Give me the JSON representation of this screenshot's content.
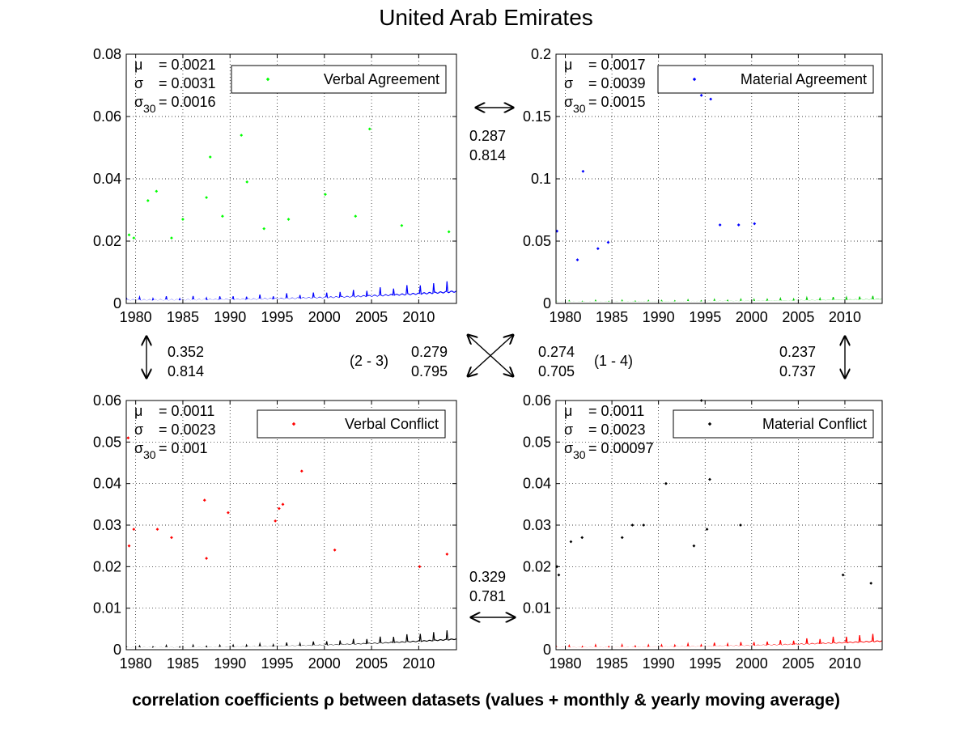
{
  "figure": {
    "title": "United Arab Emirates",
    "caption": "correlation coefficients ρ between datasets (values + monthly & yearly moving average)"
  },
  "stat_labels": {
    "mu": "μ",
    "sigma": "σ",
    "sigma30_main": "σ",
    "sigma30_sub": "30"
  },
  "chart_data": [
    {
      "type": "scatter",
      "legend": "Verbal Agreement",
      "color": "#00ff00",
      "avg_color": "#0000ff",
      "xlim": [
        1979,
        2014
      ],
      "ylim": [
        0,
        0.08
      ],
      "xticks": [
        1980,
        1985,
        1990,
        1995,
        2000,
        2005,
        2010
      ],
      "xtick_labels": [
        "1980",
        "1985",
        "1990",
        "1995",
        "2000",
        "2005",
        "2010"
      ],
      "yticks": [
        0,
        0.02,
        0.04,
        0.06,
        0.08
      ],
      "ytick_labels": [
        "0",
        "0.02",
        "0.04",
        "0.06",
        "0.08"
      ],
      "stats": {
        "mu": "= 0.0021",
        "sigma": "= 0.0031",
        "sigma30": "= 0.0016"
      },
      "base": 0.0018,
      "spread": 0.0025,
      "ramp_end": 0.0048,
      "density": 12,
      "outliers": [
        [
          1979.3,
          0.022
        ],
        [
          1979.8,
          0.021
        ],
        [
          1981.3,
          0.033
        ],
        [
          1982.2,
          0.036
        ],
        [
          1983.8,
          0.021
        ],
        [
          1985.0,
          0.027
        ],
        [
          1987.5,
          0.034
        ],
        [
          1987.9,
          0.047
        ],
        [
          1989.2,
          0.028
        ],
        [
          1991.2,
          0.054
        ],
        [
          1991.8,
          0.039
        ],
        [
          1993.6,
          0.024
        ],
        [
          1996.2,
          0.027
        ],
        [
          2000.1,
          0.035
        ],
        [
          2003.3,
          0.028
        ],
        [
          2004.8,
          0.056
        ],
        [
          2008.2,
          0.025
        ],
        [
          2013.2,
          0.023
        ]
      ]
    },
    {
      "type": "scatter",
      "legend": "Material Agreement",
      "color": "#0000ff",
      "avg_color": "#00cc00",
      "xlim": [
        1979,
        2014
      ],
      "ylim": [
        0,
        0.2
      ],
      "xticks": [
        1980,
        1985,
        1990,
        1995,
        2000,
        2005,
        2010
      ],
      "xtick_labels": [
        "1980",
        "1985",
        "1990",
        "1995",
        "2000",
        "2005",
        "2010"
      ],
      "yticks": [
        0,
        0.05,
        0.1,
        0.15,
        0.2
      ],
      "ytick_labels": [
        "0",
        "0.05",
        "0.1",
        "0.15",
        "0.2"
      ],
      "stats": {
        "mu": "= 0.0017",
        "sigma": "= 0.0039",
        "sigma30": "= 0.0015"
      },
      "base": 0.002,
      "spread": 0.004,
      "ramp_end": 0.004,
      "density": 7,
      "outliers": [
        [
          1979.1,
          0.058
        ],
        [
          1981.3,
          0.035
        ],
        [
          1981.9,
          0.106
        ],
        [
          1983.5,
          0.044
        ],
        [
          1984.6,
          0.049
        ],
        [
          1994.6,
          0.167
        ],
        [
          1995.6,
          0.164
        ],
        [
          1996.6,
          0.063
        ],
        [
          1998.6,
          0.063
        ],
        [
          2000.3,
          0.064
        ]
      ]
    },
    {
      "type": "scatter",
      "legend": "Verbal Conflict",
      "color": "#ff0000",
      "avg_color": "#000000",
      "xlim": [
        1979,
        2014
      ],
      "ylim": [
        0,
        0.06
      ],
      "xticks": [
        1980,
        1985,
        1990,
        1995,
        2000,
        2005,
        2010
      ],
      "xtick_labels": [
        "1980",
        "1985",
        "1990",
        "1995",
        "2000",
        "2005",
        "2010"
      ],
      "yticks": [
        0,
        0.01,
        0.02,
        0.03,
        0.04,
        0.05,
        0.06
      ],
      "ytick_labels": [
        "0",
        "0.01",
        "0.02",
        "0.03",
        "0.04",
        "0.05",
        "0.06"
      ],
      "stats": {
        "mu": "= 0.0011",
        "sigma": "= 0.0023",
        "sigma30": "= 0.001"
      },
      "base": 0.0008,
      "spread": 0.0026,
      "ramp_end": 0.0032,
      "density": 12,
      "outliers": [
        [
          1979.2,
          0.051
        ],
        [
          1979.3,
          0.025
        ],
        [
          1979.8,
          0.029
        ],
        [
          1982.3,
          0.029
        ],
        [
          1983.8,
          0.027
        ],
        [
          1987.3,
          0.036
        ],
        [
          1987.5,
          0.022
        ],
        [
          1989.8,
          0.033
        ],
        [
          1994.8,
          0.031
        ],
        [
          1995.2,
          0.034
        ],
        [
          1995.6,
          0.035
        ],
        [
          1997.6,
          0.043
        ],
        [
          2001.1,
          0.024
        ],
        [
          2010.1,
          0.02
        ],
        [
          2013.0,
          0.023
        ]
      ]
    },
    {
      "type": "scatter",
      "legend": "Material Conflict",
      "color": "#000000",
      "avg_color": "#ff0000",
      "xlim": [
        1979,
        2014
      ],
      "ylim": [
        0,
        0.06
      ],
      "xticks": [
        1980,
        1985,
        1990,
        1995,
        2000,
        2005,
        2010
      ],
      "xtick_labels": [
        "1980",
        "1985",
        "1990",
        "1995",
        "2000",
        "2005",
        "2010"
      ],
      "yticks": [
        0,
        0.01,
        0.02,
        0.03,
        0.04,
        0.05,
        0.06
      ],
      "ytick_labels": [
        "0",
        "0.01",
        "0.02",
        "0.03",
        "0.04",
        "0.05",
        "0.06"
      ],
      "stats": {
        "mu": "= 0.0011",
        "sigma": "= 0.0023",
        "sigma30": "= 0.00097"
      },
      "base": 0.0009,
      "spread": 0.0028,
      "ramp_end": 0.0026,
      "density": 10,
      "outliers": [
        [
          1979.1,
          0.02
        ],
        [
          1979.3,
          0.018
        ],
        [
          1980.6,
          0.026
        ],
        [
          1981.8,
          0.027
        ],
        [
          1986.1,
          0.027
        ],
        [
          1987.2,
          0.03
        ],
        [
          1988.4,
          0.03
        ],
        [
          1990.8,
          0.04
        ],
        [
          1993.8,
          0.025
        ],
        [
          1994.6,
          0.06
        ],
        [
          1995.5,
          0.041
        ],
        [
          1995.2,
          0.029
        ],
        [
          1998.8,
          0.03
        ],
        [
          2009.8,
          0.018
        ],
        [
          2012.8,
          0.016
        ]
      ]
    }
  ],
  "correlations": {
    "top": {
      "a": "0.287",
      "b": "0.814"
    },
    "left": {
      "a": "0.352",
      "b": "0.814"
    },
    "right": {
      "a": "0.237",
      "b": "0.737"
    },
    "bottom": {
      "a": "0.329",
      "b": "0.781"
    },
    "diag_23": {
      "label": "(2 - 3)",
      "a": "0.279",
      "b": "0.795"
    },
    "diag_14": {
      "label": "(1 - 4)",
      "a": "0.274",
      "b": "0.705"
    }
  }
}
